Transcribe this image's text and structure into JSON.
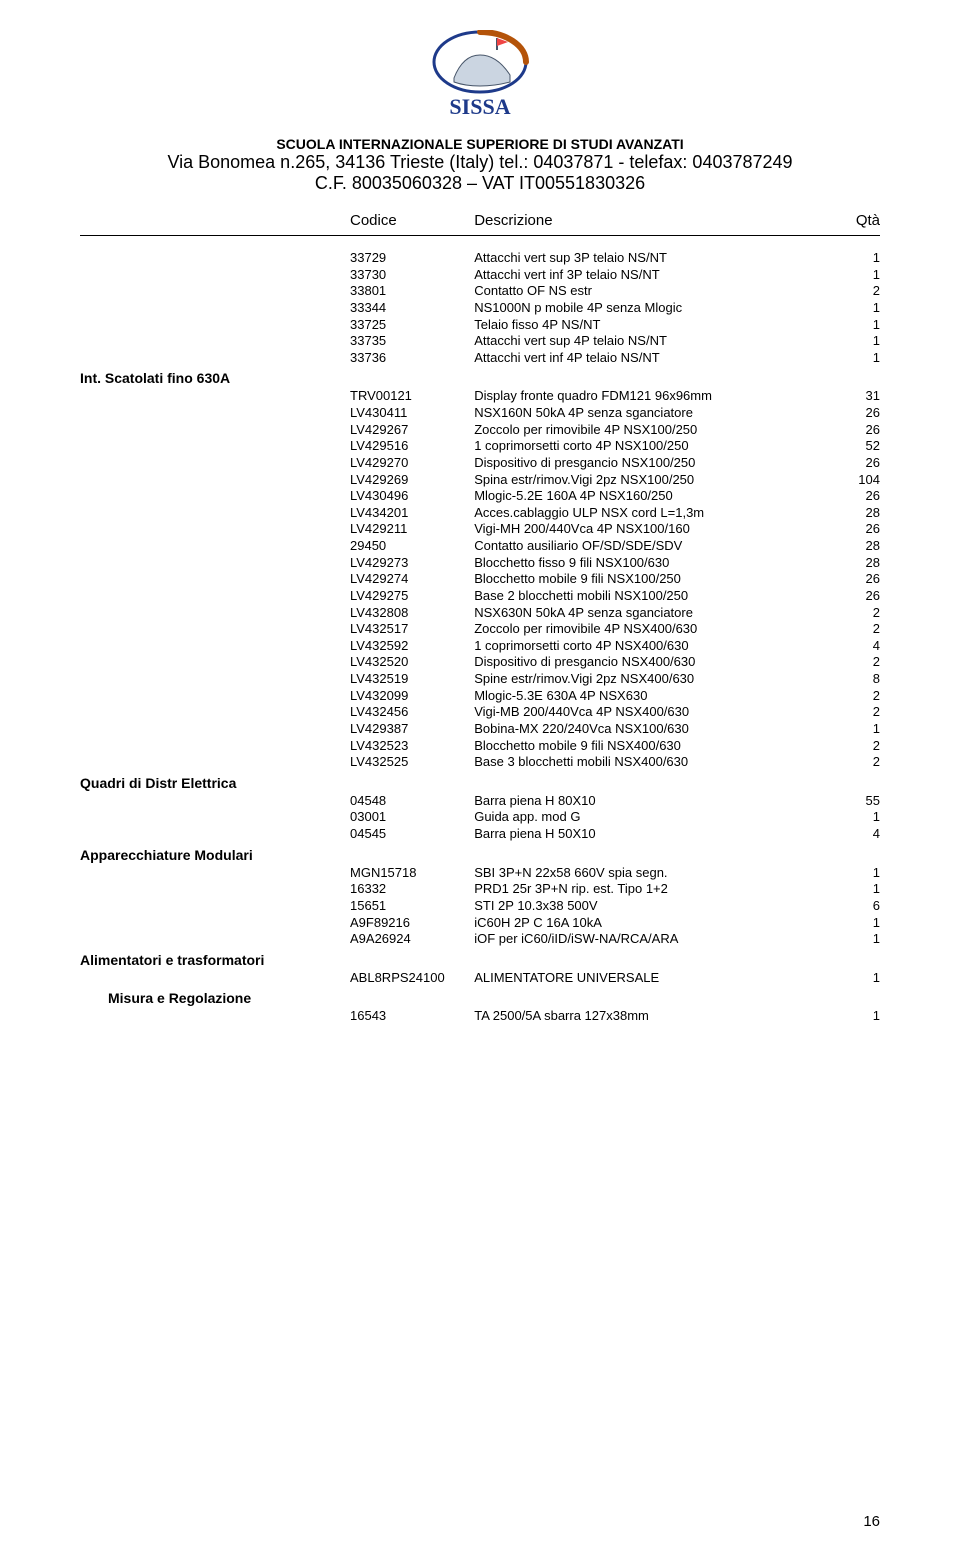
{
  "logo": {
    "top_text": "SISSA",
    "caption": ""
  },
  "header": {
    "line1": "SCUOLA INTERNAZIONALE SUPERIORE DI STUDI AVANZATI",
    "line2": "Via Bonomea n.265, 34136 Trieste (Italy) tel.: 04037871 - telefax: 0403787249",
    "line3": "C.F. 80035060328 – VAT IT00551830326"
  },
  "columns": {
    "codice": "Codice",
    "descrizione": "Descrizione",
    "qta": "Qtà"
  },
  "block_a": [
    {
      "code": "33729",
      "desc": "Attacchi vert sup 3P telaio NS/NT",
      "qty": "1"
    },
    {
      "code": "33730",
      "desc": "Attacchi vert inf 3P telaio NS/NT",
      "qty": "1"
    },
    {
      "code": "33801",
      "desc": "Contatto OF NS estr",
      "qty": "2"
    },
    {
      "code": "33344",
      "desc": "NS1000N p mobile 4P senza Mlogic",
      "qty": "1"
    },
    {
      "code": "33725",
      "desc": "Telaio fisso 4P NS/NT",
      "qty": "1"
    },
    {
      "code": "33735",
      "desc": "Attacchi vert sup 4P telaio NS/NT",
      "qty": "1"
    },
    {
      "code": "33736",
      "desc": "Attacchi vert inf 4P telaio NS/NT",
      "qty": "1"
    }
  ],
  "sec_b_title": "Int. Scatolati fino 630A",
  "block_b": [
    {
      "code": "TRV00121",
      "desc": "Display fronte quadro FDM121 96x96mm",
      "qty": "31"
    },
    {
      "code": "LV430411",
      "desc": "NSX160N 50kA 4P senza sganciatore",
      "qty": "26"
    },
    {
      "code": "LV429267",
      "desc": "Zoccolo per rimovibile 4P NSX100/250",
      "qty": "26"
    },
    {
      "code": "LV429516",
      "desc": "1 coprimorsetti corto 4P NSX100/250",
      "qty": "52"
    },
    {
      "code": "LV429270",
      "desc": "Dispositivo di presgancio NSX100/250",
      "qty": "26"
    },
    {
      "code": "LV429269",
      "desc": "Spina estr/rimov.Vigi 2pz NSX100/250",
      "qty": "104"
    },
    {
      "code": "LV430496",
      "desc": "Mlogic-5.2E 160A 4P NSX160/250",
      "qty": "26"
    },
    {
      "code": "LV434201",
      "desc": "Acces.cablaggio ULP NSX cord L=1,3m",
      "qty": "28"
    },
    {
      "code": "LV429211",
      "desc": "Vigi-MH 200/440Vca 4P NSX100/160",
      "qty": "26"
    },
    {
      "code": "29450",
      "desc": "Contatto ausiliario OF/SD/SDE/SDV",
      "qty": "28"
    },
    {
      "code": "LV429273",
      "desc": "Blocchetto fisso 9 fili NSX100/630",
      "qty": "28"
    },
    {
      "code": "LV429274",
      "desc": "Blocchetto mobile 9 fili NSX100/250",
      "qty": "26"
    },
    {
      "code": "LV429275",
      "desc": "Base 2 blocchetti mobili NSX100/250",
      "qty": "26"
    },
    {
      "code": "LV432808",
      "desc": "NSX630N 50kA 4P senza sganciatore",
      "qty": "2"
    },
    {
      "code": "LV432517",
      "desc": "Zoccolo per rimovibile 4P NSX400/630",
      "qty": "2"
    },
    {
      "code": "LV432592",
      "desc": "1 coprimorsetti corto 4P NSX400/630",
      "qty": "4"
    },
    {
      "code": "LV432520",
      "desc": "Dispositivo di presgancio NSX400/630",
      "qty": "2"
    },
    {
      "code": "LV432519",
      "desc": "Spine estr/rimov.Vigi 2pz NSX400/630",
      "qty": "8"
    },
    {
      "code": "LV432099",
      "desc": "Mlogic-5.3E 630A 4P NSX630",
      "qty": "2"
    },
    {
      "code": "LV432456",
      "desc": "Vigi-MB 200/440Vca 4P NSX400/630",
      "qty": "2"
    },
    {
      "code": "LV429387",
      "desc": "Bobina-MX 220/240Vca NSX100/630",
      "qty": "1"
    },
    {
      "code": "LV432523",
      "desc": "Blocchetto mobile 9 fili NSX400/630",
      "qty": "2"
    },
    {
      "code": "LV432525",
      "desc": "Base 3 blocchetti mobili NSX400/630",
      "qty": "2"
    }
  ],
  "sec_c_title": "Quadri di Distr Elettrica",
  "block_c": [
    {
      "code": "04548",
      "desc": "Barra piena H 80X10",
      "qty": "55"
    },
    {
      "code": "03001",
      "desc": "Guida app. mod G",
      "qty": "1"
    },
    {
      "code": "04545",
      "desc": "Barra piena H 50X10",
      "qty": "4"
    }
  ],
  "sec_d_title": "Apparecchiature Modulari",
  "block_d": [
    {
      "code": "MGN15718",
      "desc": "SBI 3P+N 22x58 660V spia segn.",
      "qty": "1"
    },
    {
      "code": "16332",
      "desc": "PRD1 25r 3P+N rip. est. Tipo 1+2",
      "qty": "1"
    },
    {
      "code": "15651",
      "desc": "STI 2P 10.3x38 500V",
      "qty": "6"
    },
    {
      "code": "A9F89216",
      "desc": "iC60H 2P C 16A 10kA",
      "qty": "1"
    },
    {
      "code": "A9A26924",
      "desc": "iOF per iC60/iID/iSW-NA/RCA/ARA",
      "qty": "1"
    }
  ],
  "sec_e_title": "Alimentatori e trasformatori",
  "block_e": [
    {
      "code": "ABL8RPS24100",
      "desc": "ALIMENTATORE UNIVERSALE",
      "qty": "1"
    }
  ],
  "sec_f_title": "Misura e Regolazione",
  "block_f": [
    {
      "code": "16543",
      "desc": "TA 2500/5A sbarra 127x38mm",
      "qty": "1"
    }
  ],
  "page_number": "16"
}
